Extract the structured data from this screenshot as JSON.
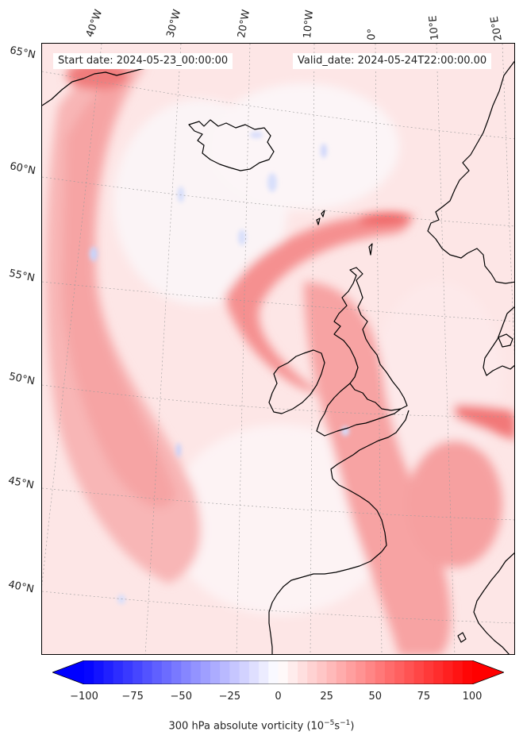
{
  "map": {
    "start_date": "Start date: 2024-05-23_00:00:00",
    "valid_date": "Valid_date: 2024-05-24T22:00:00.00",
    "lon_labels": [
      "40°W",
      "30°W",
      "20°W",
      "10°W",
      "0°",
      "10°E",
      "20°E"
    ],
    "lat_labels": [
      "65°N",
      "60°N",
      "55°N",
      "50°N",
      "45°N",
      "40°N"
    ],
    "field": "300 hPa absolute vorticity",
    "coastline_color": "#000000",
    "gridline_color": "#9a9a9a"
  },
  "colorbar": {
    "min": -100,
    "max": 100,
    "step": 5,
    "ticks": [
      "−100",
      "−75",
      "−50",
      "−25",
      "0",
      "25",
      "50",
      "75",
      "100"
    ],
    "label": "300 hPa absolute vorticity (10",
    "label_exp1": "−5",
    "label_mid": "s",
    "label_exp2": "−1",
    "label_end": ")",
    "low_color": "#0000ff",
    "zero_color": "#ffffff",
    "high_color": "#ff0000"
  }
}
